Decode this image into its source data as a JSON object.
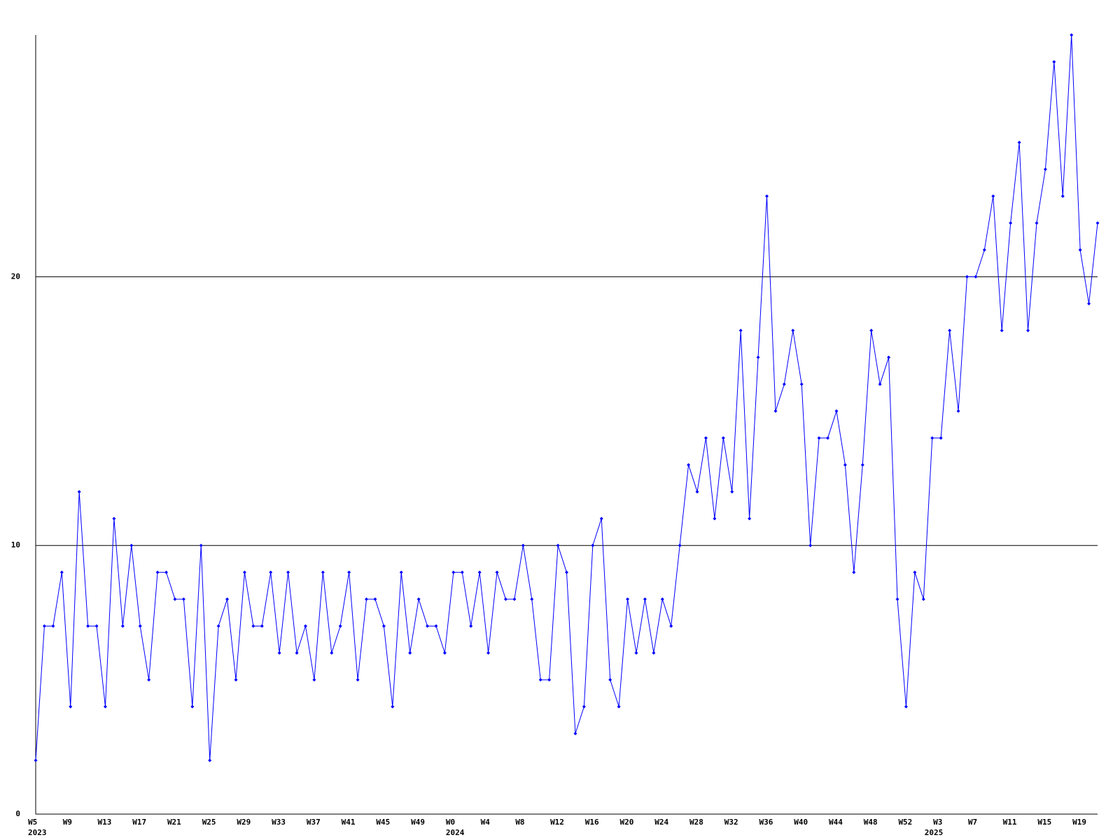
{
  "chart_data": {
    "type": "line",
    "categories": [
      "W5",
      null,
      null,
      null,
      "W9",
      null,
      null,
      null,
      "W13",
      null,
      null,
      null,
      "W17",
      null,
      null,
      null,
      "W21",
      null,
      null,
      null,
      "W25",
      null,
      null,
      null,
      "W29",
      null,
      null,
      null,
      "W33",
      null,
      null,
      null,
      "W37",
      null,
      null,
      null,
      "W41",
      null,
      null,
      null,
      "W45",
      null,
      null,
      null,
      "W49",
      null,
      null,
      null,
      "W0",
      null,
      null,
      null,
      "W4",
      null,
      null,
      null,
      "W8",
      null,
      null,
      null,
      "W12",
      null,
      null,
      null,
      "W16",
      null,
      null,
      null,
      "W20",
      null,
      null,
      null,
      "W24",
      null,
      null,
      null,
      "W28",
      null,
      null,
      null,
      "W32",
      null,
      null,
      null,
      "W36",
      null,
      null,
      null,
      "W40",
      null,
      null,
      null,
      "W44",
      null,
      null,
      null,
      "W48",
      null,
      null,
      null,
      "W52",
      null,
      null,
      null,
      "W3",
      null,
      null,
      null,
      "W7",
      null,
      null,
      null,
      "W11",
      null,
      null,
      null,
      "W15",
      null,
      null,
      null,
      "W19",
      null,
      null
    ],
    "x_year_labels": [
      "2023",
      null,
      null,
      null,
      null,
      null,
      null,
      null,
      null,
      null,
      null,
      null,
      null,
      null,
      null,
      null,
      null,
      null,
      null,
      null,
      null,
      null,
      null,
      null,
      null,
      null,
      null,
      null,
      null,
      null,
      null,
      null,
      null,
      null,
      null,
      null,
      null,
      null,
      null,
      null,
      null,
      null,
      null,
      null,
      null,
      null,
      null,
      null,
      "2024",
      null,
      null,
      null,
      null,
      null,
      null,
      null,
      null,
      null,
      null,
      null,
      null,
      null,
      null,
      null,
      null,
      null,
      null,
      null,
      null,
      null,
      null,
      null,
      null,
      null,
      null,
      null,
      null,
      null,
      null,
      null,
      null,
      null,
      null,
      null,
      null,
      null,
      null,
      null,
      null,
      null,
      null,
      null,
      null,
      null,
      null,
      null,
      null,
      null,
      null,
      null,
      null,
      null,
      null,
      "2025",
      null,
      null,
      null,
      null,
      null,
      null,
      null,
      null,
      null,
      null,
      null,
      null,
      null,
      null,
      null,
      null,
      null,
      null,
      null,
      null,
      null
    ],
    "series": [
      {
        "color": "#0000ff",
        "values": [
          2,
          7,
          7,
          9,
          4,
          12,
          7,
          7,
          4,
          11,
          7,
          10,
          7,
          5,
          9,
          9,
          8,
          8,
          4,
          10,
          2,
          7,
          8,
          5,
          9,
          7,
          7,
          9,
          6,
          9,
          6,
          7,
          5,
          9,
          6,
          7,
          9,
          5,
          8,
          8,
          7,
          4,
          9,
          6,
          8,
          7,
          7,
          6,
          9,
          9,
          7,
          9,
          6,
          9,
          8,
          8,
          10,
          8,
          5,
          5,
          10,
          9,
          3,
          4,
          10,
          11,
          5,
          4,
          8,
          6,
          8,
          6,
          8,
          7,
          10,
          13,
          12,
          14,
          11,
          14,
          12,
          18,
          11,
          17,
          23,
          15,
          16,
          18,
          16,
          10,
          14,
          14,
          15,
          13,
          9,
          13,
          18,
          16,
          17,
          8,
          4,
          9,
          8,
          14,
          14,
          18,
          15,
          20,
          20,
          21,
          23,
          18,
          22,
          25,
          18,
          22,
          24,
          28,
          23,
          29,
          21,
          19,
          22
        ]
      }
    ],
    "ylim": [
      0,
      29
    ],
    "yticks": [
      0,
      10,
      20
    ],
    "grid": true
  }
}
